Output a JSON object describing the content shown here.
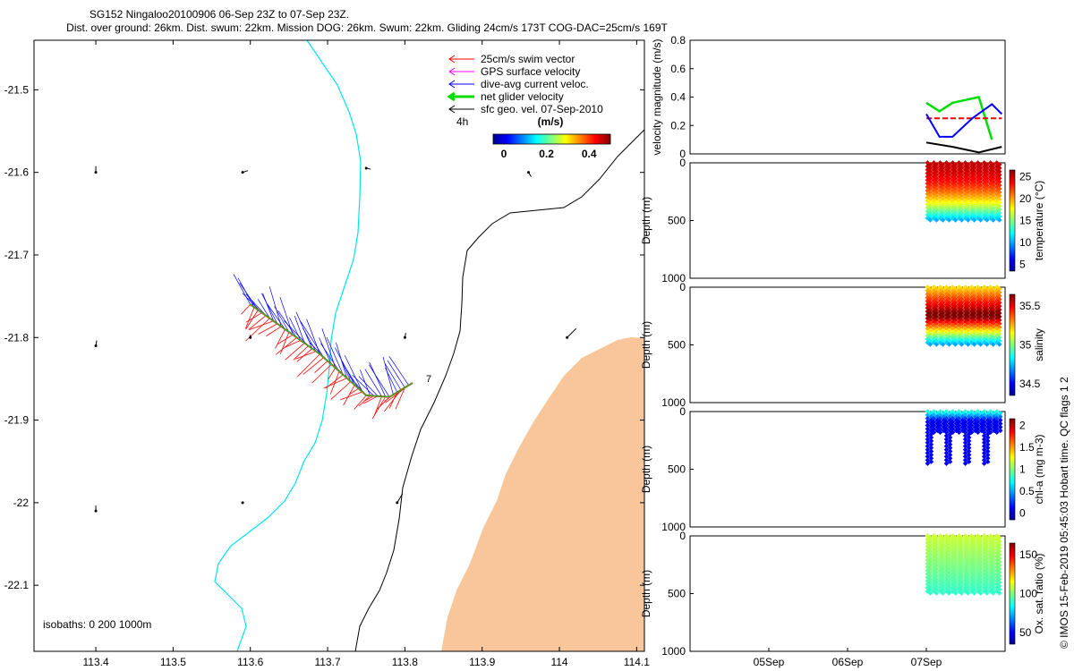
{
  "title_line1": "SG152 Ningaloo20100906 06-Sep 23Z to 07-Sep 23Z.",
  "title_line2": "Dist. over ground: 26km. Dist. swum: 22km. Mission DOG: 26km. Swum: 22km. Gliding 24cm/s 173T COG-DAC=25cm/s 169T",
  "credit": "© IMOS 15-Feb-2019 05:45:03 Hobart time. QC flags 1  2",
  "colors": {
    "coast": "#00e5ee",
    "isobath": "#000000",
    "land": "#f8c69a",
    "swim": "#ff0000",
    "gps": "#ff00ff",
    "dac": "#0000ff",
    "net": "#00dd00",
    "geo": "#000000"
  },
  "map": {
    "legend": [
      {
        "label": "25cm/s swim vector",
        "key": "swim"
      },
      {
        "label": "GPS surface velocity",
        "key": "gps"
      },
      {
        "label": "dive-avg current veloc.",
        "key": "dac"
      },
      {
        "label": "net glider velocity",
        "key": "net"
      },
      {
        "label": "sfc geo. vel. 07-Sep-2010",
        "key": "geo"
      }
    ],
    "time_label": "4h",
    "colorbar_unit": "(m/s)",
    "colorbar_ticks": [
      "0",
      "0.2",
      "0.4"
    ],
    "isobath_note": "isobaths: 0   200  1000m",
    "end_label": "7"
  },
  "chart_data": [
    {
      "type": "line",
      "panel": "map",
      "x_ticks": [
        "113.4",
        "113.5",
        "113.6",
        "113.7",
        "113.8",
        "113.9",
        "114",
        "114.1"
      ],
      "y_ticks": [
        "-21.5",
        "-21.6",
        "-21.7",
        "-21.8",
        "-21.9",
        "-22",
        "-22.1"
      ],
      "xlim": [
        113.32,
        114.11
      ],
      "ylim": [
        -22.18,
        -21.44
      ],
      "glider_track": {
        "lon": [
          113.6,
          113.63,
          113.66,
          113.69,
          113.72,
          113.75,
          113.78,
          113.81
        ],
        "lat": [
          -21.76,
          -21.78,
          -21.8,
          -21.82,
          -21.845,
          -21.87,
          -21.872,
          -21.855
        ]
      }
    },
    {
      "type": "line",
      "panel": "velocity",
      "ylabel": "velocity magnitude (m/s)",
      "ylim": [
        0,
        0.8
      ],
      "y_ticks": [
        "0",
        "0.2",
        "0.4",
        "0.6",
        "0.8"
      ],
      "series": [
        {
          "key": "net",
          "x": [
            "07-Sep 00:00",
            "07-Sep 04:00",
            "07-Sep 08:00",
            "07-Sep 12:00",
            "07-Sep 16:00",
            "07-Sep 20:00"
          ],
          "values": [
            0.36,
            0.3,
            0.36,
            0.38,
            0.4,
            0.1
          ]
        },
        {
          "key": "swim",
          "x": [
            "07-Sep 00:00",
            "07-Sep 12:00",
            "07-Sep 23:00"
          ],
          "values": [
            0.25,
            0.25,
            0.25
          ]
        },
        {
          "key": "dac",
          "x": [
            "07-Sep 00:00",
            "07-Sep 04:00",
            "07-Sep 08:00",
            "07-Sep 14:00",
            "07-Sep 20:00",
            "07-Sep 23:00"
          ],
          "values": [
            0.28,
            0.12,
            0.12,
            0.25,
            0.35,
            0.28
          ]
        },
        {
          "key": "geo",
          "x": [
            "07-Sep 00:00",
            "07-Sep 08:00",
            "07-Sep 16:00",
            "07-Sep 23:00"
          ],
          "values": [
            0.08,
            0.05,
            0.01,
            0.05
          ]
        }
      ]
    },
    {
      "type": "scatter",
      "panel": "temperature",
      "ylabel": "Depth (m)",
      "clabel": "temperature (°C)",
      "ylim": [
        0,
        1000
      ],
      "y_ticks": [
        "0",
        "500",
        "1000"
      ],
      "c_ticks": [
        "5",
        "10",
        "15",
        "20",
        "25"
      ],
      "profile_columns": 12,
      "max_depth_m": 500,
      "surface_value": 25,
      "deep_value": 10
    },
    {
      "type": "scatter",
      "panel": "salinity",
      "ylabel": "Depth (m)",
      "clabel": "salinity",
      "ylim": [
        0,
        1000
      ],
      "y_ticks": [
        "0",
        "500",
        "1000"
      ],
      "c_ticks": [
        "34.5",
        "35",
        "35.5"
      ],
      "profile_columns": 12,
      "max_depth_m": 500,
      "surface_value": 35.2,
      "max_value": 35.7,
      "deep_value": 34.7
    },
    {
      "type": "scatter",
      "panel": "chl",
      "ylabel": "Depth (m)",
      "clabel": "chl-a (mg m-3)",
      "ylim": [
        0,
        1000
      ],
      "y_ticks": [
        "0",
        "500",
        "1000"
      ],
      "c_ticks": [
        "0",
        "0.5",
        "1",
        "1.5",
        "2"
      ],
      "max_depth_m": 450,
      "surface_value": 0.8,
      "deep_value": 0.1
    },
    {
      "type": "scatter",
      "panel": "oxygen",
      "ylabel": "Depth (m)",
      "clabel": "Ox. sat. ratio (%)",
      "ylim": [
        0,
        1000
      ],
      "y_ticks": [
        "0",
        "500",
        "1000"
      ],
      "c_ticks": [
        "50",
        "100",
        "150"
      ],
      "profile_columns": 12,
      "max_depth_m": 500,
      "surface_value": 110,
      "deep_value": 90
    }
  ],
  "time_axis": {
    "ticks": [
      "05Sep",
      "06Sep",
      "07Sep"
    ]
  }
}
